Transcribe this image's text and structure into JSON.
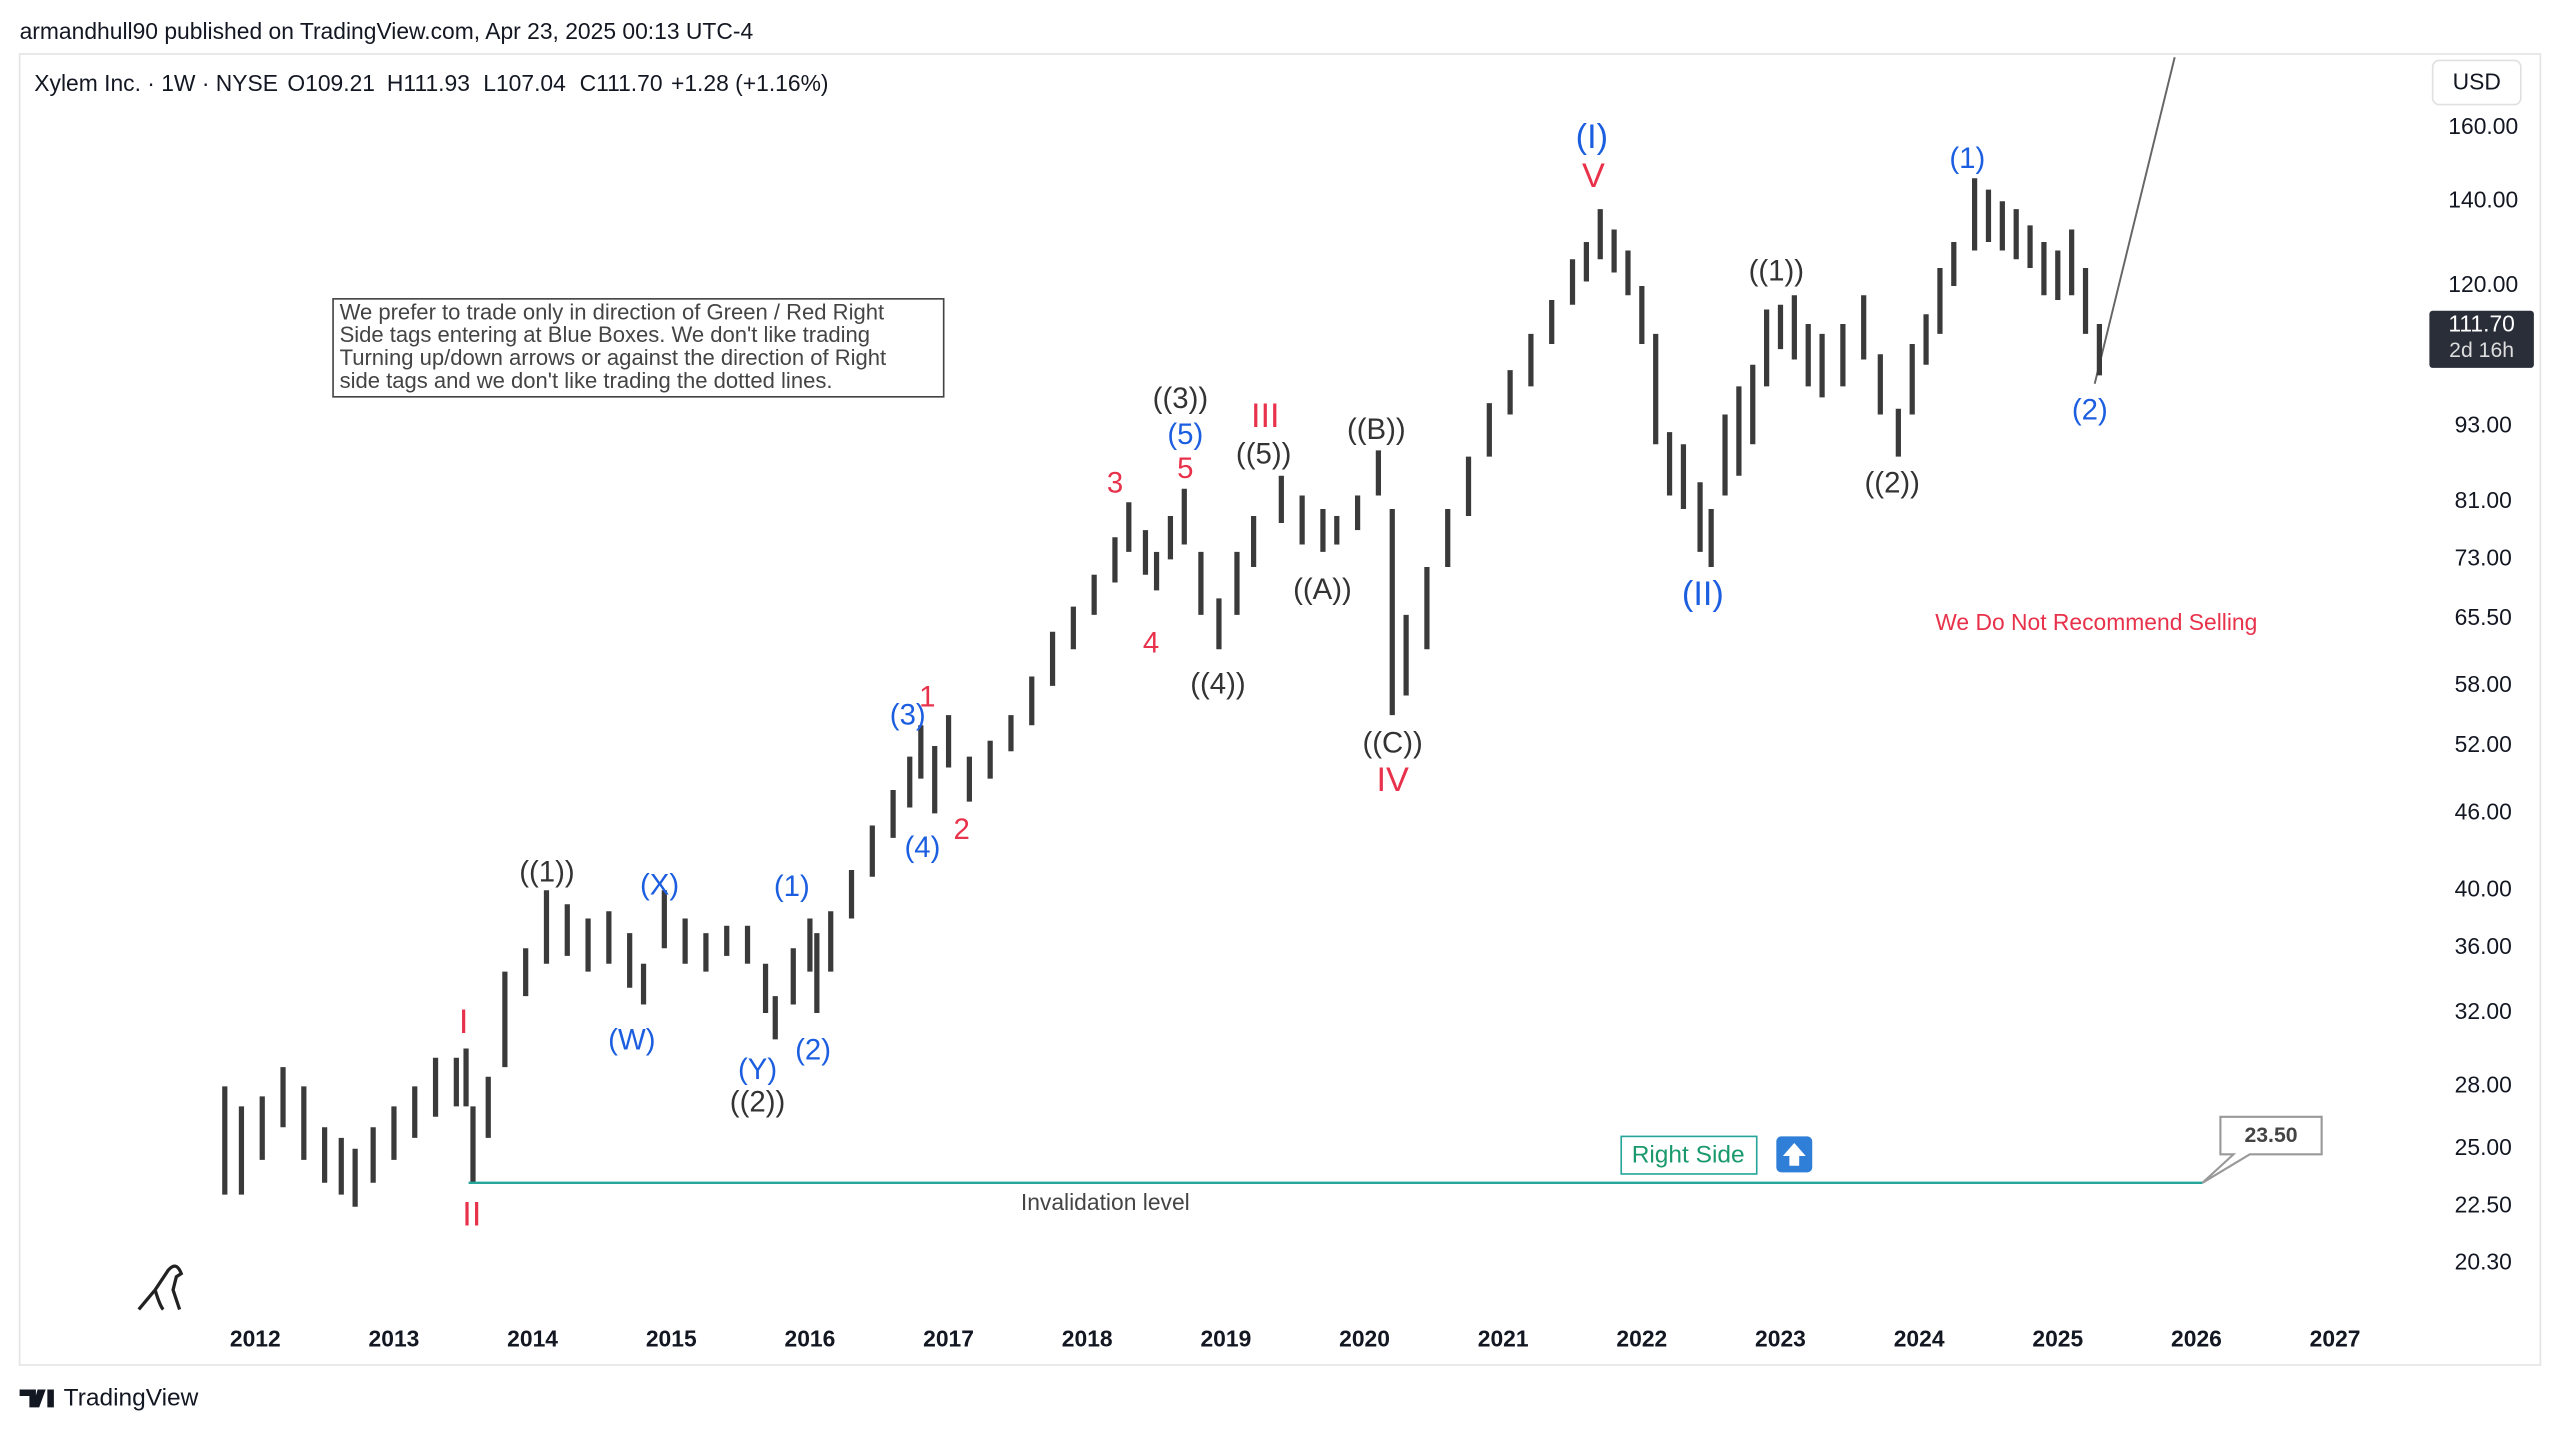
{
  "header": {
    "published": "armandhull90 published on TradingView.com, Apr 23, 2025 00:13 UTC-4",
    "symbol": "Xylem Inc. · 1W · NYSE",
    "open": "O109.21",
    "high": "H111.93",
    "low": "L107.04",
    "close": "C111.70",
    "change": "+1.28 (+1.16%)",
    "currency": "USD",
    "footer": "TradingView"
  },
  "chart_data": {
    "type": "ohlc",
    "log_scale": true,
    "color": "#3a3a3a",
    "x": [
      2011.78,
      2011.9,
      2012.05,
      2012.2,
      2012.35,
      2012.5,
      2012.62,
      2012.72,
      2012.85,
      2013.0,
      2013.15,
      2013.3,
      2013.45,
      2013.52,
      2013.57,
      2013.68,
      2013.8,
      2013.95,
      2014.1,
      2014.25,
      2014.4,
      2014.55,
      2014.7,
      2014.8,
      2014.95,
      2015.1,
      2015.25,
      2015.4,
      2015.55,
      2015.68,
      2015.75,
      2015.88,
      2016.0,
      2016.05,
      2016.15,
      2016.3,
      2016.45,
      2016.6,
      2016.72,
      2016.8,
      2016.9,
      2017.0,
      2017.15,
      2017.3,
      2017.45,
      2017.6,
      2017.75,
      2017.9,
      2018.05,
      2018.2,
      2018.3,
      2018.42,
      2018.5,
      2018.6,
      2018.7,
      2018.82,
      2018.95,
      2019.08,
      2019.2,
      2019.4,
      2019.55,
      2019.7,
      2019.8,
      2019.95,
      2020.1,
      2020.2,
      2020.3,
      2020.45,
      2020.6,
      2020.75,
      2020.9,
      2021.05,
      2021.2,
      2021.35,
      2021.5,
      2021.6,
      2021.7,
      2021.8,
      2021.9,
      2022.0,
      2022.1,
      2022.2,
      2022.3,
      2022.42,
      2022.5,
      2022.6,
      2022.7,
      2022.8,
      2022.9,
      2023.0,
      2023.1,
      2023.2,
      2023.3,
      2023.45,
      2023.6,
      2023.72,
      2023.85,
      2023.95,
      2024.05,
      2024.15,
      2024.25,
      2024.4,
      2024.5,
      2024.6,
      2024.7,
      2024.8,
      2024.9,
      2025.0,
      2025.1,
      2025.2,
      2025.3
    ],
    "high": [
      28,
      27,
      27.5,
      29,
      28,
      26,
      25.5,
      25,
      26,
      27,
      28,
      29.5,
      29.5,
      30,
      27,
      28.5,
      34.5,
      36,
      40,
      39,
      38,
      38.5,
      37,
      35,
      40,
      38,
      37,
      37.5,
      37.5,
      35,
      33,
      36,
      38,
      37,
      38.5,
      41.5,
      45,
      48,
      51,
      54,
      52,
      55,
      51,
      52.5,
      55,
      59,
      64,
      67,
      71,
      76,
      81,
      77,
      74,
      79,
      83,
      74,
      68,
      74,
      79,
      85,
      82,
      80,
      79,
      82,
      89,
      80,
      66,
      72,
      80,
      88,
      97,
      103,
      110,
      117,
      126,
      130,
      138,
      133,
      128,
      120,
      110,
      92,
      90,
      84,
      80,
      95,
      100,
      104,
      115,
      116,
      118,
      112,
      110,
      112,
      118,
      106,
      96,
      108,
      114,
      124,
      130,
      146,
      143,
      140,
      138,
      134,
      130,
      128,
      133,
      124,
      112
    ],
    "low": [
      23,
      23,
      24.5,
      26,
      24.5,
      23.5,
      23,
      22.5,
      23.5,
      24.5,
      25.5,
      26.5,
      27,
      27,
      23.5,
      25.5,
      29,
      33,
      35,
      35.5,
      34.5,
      35,
      33.5,
      32.5,
      36,
      35,
      34.5,
      35.5,
      35,
      32,
      30.5,
      32.5,
      34.5,
      32,
      34.5,
      38,
      41,
      44,
      46.5,
      49,
      46,
      50,
      47,
      49,
      51.5,
      54,
      58,
      62,
      66,
      70,
      74,
      71,
      69,
      73,
      75,
      66,
      62,
      66,
      72,
      78,
      75,
      74,
      75,
      77,
      82,
      55,
      57,
      62,
      72,
      79,
      88,
      95,
      100,
      108,
      116,
      121,
      126,
      123,
      118,
      108,
      90,
      82,
      80,
      74,
      72,
      82,
      85,
      90,
      100,
      107,
      105,
      100,
      98,
      100,
      105,
      95,
      88,
      95,
      104,
      110,
      120,
      128,
      130,
      128,
      126,
      124,
      118,
      117,
      118,
      110,
      102
    ],
    "xlim": [
      2010.3,
      2027.68
    ],
    "xticks": [
      2012,
      2013,
      2014,
      2015,
      2016,
      2017,
      2018,
      2019,
      2020,
      2021,
      2022,
      2023,
      2024,
      2025,
      2026,
      2027
    ],
    "ylim": [
      18.5,
      183
    ],
    "yticks": [
      {
        "value": 160,
        "label": "160.00"
      },
      {
        "value": 140,
        "label": "140.00"
      },
      {
        "value": 120,
        "label": "120.00"
      },
      {
        "value": 93,
        "label": "93.00"
      },
      {
        "value": 81,
        "label": "81.00"
      },
      {
        "value": 73,
        "label": "73.00"
      },
      {
        "value": 65.5,
        "label": "65.50"
      },
      {
        "value": 58,
        "label": "58.00"
      },
      {
        "value": 52,
        "label": "52.00"
      },
      {
        "value": 46,
        "label": "46.00"
      },
      {
        "value": 40,
        "label": "40.00"
      },
      {
        "value": 36,
        "label": "36.00"
      },
      {
        "value": 32,
        "label": "32.00"
      },
      {
        "value": 28,
        "label": "28.00"
      },
      {
        "value": 25,
        "label": "25.00"
      },
      {
        "value": 22.5,
        "label": "22.50"
      },
      {
        "value": 20.3,
        "label": "20.30"
      }
    ],
    "last_price": {
      "value": 111.7,
      "label": "111.70",
      "countdown": "2d 16h"
    },
    "invalidation": {
      "value": 23.5,
      "label": "23.50",
      "text": "Invalidation level",
      "color": "#26a69a"
    },
    "note": [
      "We prefer to trade only in direction of Green / Red Right",
      "Side tags entering at Blue Boxes. We don't like trading",
      "Turning up/down arrows or against the direction of Right",
      "side tags and we don't like trading the dotted lines."
    ],
    "recommendation": "We Do Not Recommend Selling",
    "right_side": "Right Side",
    "annotations": [
      {
        "text": "((1))",
        "color": "#333333"
      },
      {
        "text": "((2))",
        "color": "#333333"
      },
      {
        "text": "((3))",
        "color": "#333333"
      },
      {
        "text": "((4))",
        "color": "#333333"
      },
      {
        "text": "((5))",
        "color": "#333333"
      },
      {
        "text": "((A))",
        "color": "#333333"
      },
      {
        "text": "((B))",
        "color": "#333333"
      },
      {
        "text": "((C))",
        "color": "#333333"
      },
      {
        "text": "((1))",
        "color": "#333333"
      },
      {
        "text": "((2))",
        "color": "#333333"
      },
      {
        "text": "(X)",
        "color": "#1c5ee0"
      },
      {
        "text": "(W)",
        "color": "#1c5ee0"
      },
      {
        "text": "(Y)",
        "color": "#1c5ee0"
      },
      {
        "text": "(1)",
        "color": "#1c5ee0"
      },
      {
        "text": "(2)",
        "color": "#1c5ee0"
      },
      {
        "text": "(3)",
        "color": "#1c5ee0"
      },
      {
        "text": "(4)",
        "color": "#1c5ee0"
      },
      {
        "text": "(5)",
        "color": "#1c5ee0"
      },
      {
        "text": "(I)",
        "color": "#1c5ee0"
      },
      {
        "text": "(II)",
        "color": "#1c5ee0"
      },
      {
        "text": "(1)",
        "color": "#1c5ee0"
      },
      {
        "text": "(2)",
        "color": "#1c5ee0"
      },
      {
        "text": "I",
        "color": "#e8314a"
      },
      {
        "text": "II",
        "color": "#e8314a"
      },
      {
        "text": "1",
        "color": "#e8314a"
      },
      {
        "text": "2",
        "color": "#e8314a"
      },
      {
        "text": "3",
        "color": "#e8314a"
      },
      {
        "text": "4",
        "color": "#e8314a"
      },
      {
        "text": "5",
        "color": "#e8314a"
      },
      {
        "text": "III",
        "color": "#e8314a"
      },
      {
        "text": "IV",
        "color": "#e8314a"
      },
      {
        "text": "V",
        "color": "#e8314a"
      }
    ]
  }
}
